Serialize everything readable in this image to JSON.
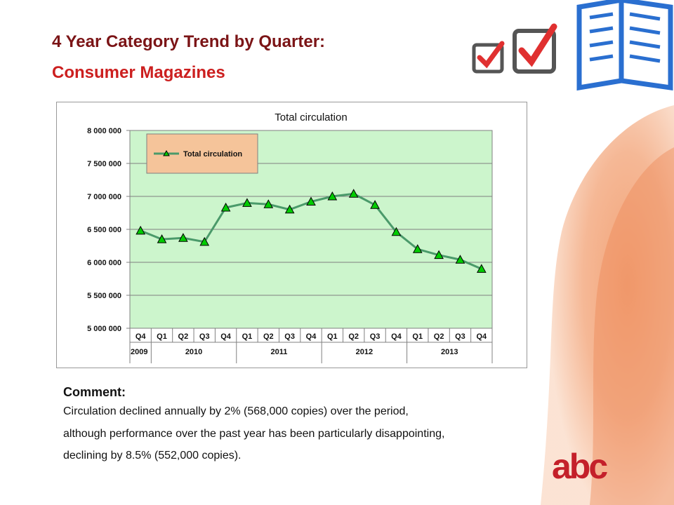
{
  "slide": {
    "title_line1": "4 Year Category Trend by Quarter:",
    "title_line2": "Consumer Magazines"
  },
  "comment": {
    "heading": "Comment:",
    "lines": [
      "Circulation declined annually by 2% (568,000 copies) over the period,",
      "although performance over the past year has been  particularly disappointing,",
      "declining by 8.5% (552,000 copies)."
    ]
  },
  "logo_text": "abc",
  "colors": {
    "title_dark": "#7b1416",
    "title_red": "#cc1f1f",
    "plot_bg": "#ccf5cc",
    "line": "#4a9a6a",
    "marker": "#00cc00",
    "legend_bg": "#f5c49a",
    "logo": "#c4202a"
  },
  "chart_data": {
    "type": "line",
    "title": "Total circulation",
    "xlabel": "",
    "ylabel": "",
    "ylim": [
      5000000,
      8000000
    ],
    "yticks": [
      5000000,
      5500000,
      6000000,
      6500000,
      7000000,
      7500000,
      8000000
    ],
    "ytick_labels": [
      "5 000 000",
      "5 500 000",
      "6 000 000",
      "6 500 000",
      "7 000 000",
      "7 500 000",
      "8 000 000"
    ],
    "categories": [
      "Q4",
      "Q1",
      "Q2",
      "Q3",
      "Q4",
      "Q1",
      "Q2",
      "Q3",
      "Q4",
      "Q1",
      "Q2",
      "Q3",
      "Q4",
      "Q1",
      "Q2",
      "Q3",
      "Q4"
    ],
    "years": [
      {
        "label": "2009",
        "span": 1
      },
      {
        "label": "2010",
        "span": 4
      },
      {
        "label": "2011",
        "span": 4
      },
      {
        "label": "2012",
        "span": 4
      },
      {
        "label": "2013",
        "span": 4
      }
    ],
    "series": [
      {
        "name": "Total circulation",
        "values": [
          6480000,
          6350000,
          6370000,
          6310000,
          6830000,
          6900000,
          6880000,
          6800000,
          6920000,
          7000000,
          7040000,
          6870000,
          6460000,
          6200000,
          6110000,
          6040000,
          5900000
        ]
      }
    ],
    "grid": true,
    "legend": "top-left"
  }
}
